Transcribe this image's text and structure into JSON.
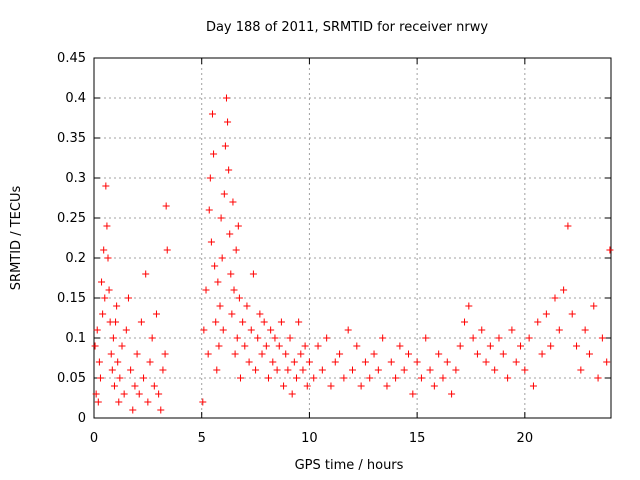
{
  "chart_data": {
    "type": "scatter",
    "title": "Day 188 of 2011, SRMTID for receiver nrwy",
    "xlabel": "GPS time / hours",
    "ylabel": "SRMTID / TECUs",
    "xlim": [
      0,
      24
    ],
    "ylim": [
      0,
      0.45
    ],
    "x_ticks": [
      0,
      5,
      10,
      15,
      20
    ],
    "x_tick_labels": [
      "0",
      "5",
      "10",
      "15",
      "20"
    ],
    "y_ticks": [
      0,
      0.05,
      0.1,
      0.15,
      0.2,
      0.25,
      0.3,
      0.35,
      0.4,
      0.45
    ],
    "y_tick_labels": [
      "0",
      "0.05",
      "0.1",
      "0.15",
      "0.2",
      "0.25",
      "0.3",
      "0.35",
      "0.4",
      "0.45"
    ],
    "grid": true,
    "marker": "+",
    "marker_color": "#ff0000",
    "series": [
      {
        "name": "SRMTID",
        "points": [
          [
            0.05,
            0.09
          ],
          [
            0.1,
            0.03
          ],
          [
            0.15,
            0.11
          ],
          [
            0.2,
            0.02
          ],
          [
            0.25,
            0.07
          ],
          [
            0.3,
            0.05
          ],
          [
            0.35,
            0.17
          ],
          [
            0.4,
            0.13
          ],
          [
            0.45,
            0.21
          ],
          [
            0.5,
            0.15
          ],
          [
            0.55,
            0.29
          ],
          [
            0.6,
            0.24
          ],
          [
            0.65,
            0.2
          ],
          [
            0.7,
            0.16
          ],
          [
            0.75,
            0.12
          ],
          [
            0.8,
            0.08
          ],
          [
            0.85,
            0.06
          ],
          [
            0.9,
            0.1
          ],
          [
            0.95,
            0.04
          ],
          [
            1.0,
            0.12
          ],
          [
            1.05,
            0.14
          ],
          [
            1.1,
            0.07
          ],
          [
            1.15,
            0.02
          ],
          [
            1.2,
            0.05
          ],
          [
            1.3,
            0.09
          ],
          [
            1.4,
            0.03
          ],
          [
            1.5,
            0.11
          ],
          [
            1.6,
            0.15
          ],
          [
            1.7,
            0.06
          ],
          [
            1.8,
            0.01
          ],
          [
            1.9,
            0.04
          ],
          [
            2.0,
            0.08
          ],
          [
            2.1,
            0.03
          ],
          [
            2.2,
            0.12
          ],
          [
            2.3,
            0.05
          ],
          [
            2.4,
            0.18
          ],
          [
            2.5,
            0.02
          ],
          [
            2.6,
            0.07
          ],
          [
            2.7,
            0.1
          ],
          [
            2.8,
            0.04
          ],
          [
            2.9,
            0.13
          ],
          [
            3.0,
            0.03
          ],
          [
            3.1,
            0.01
          ],
          [
            3.2,
            0.06
          ],
          [
            3.3,
            0.08
          ],
          [
            3.35,
            0.265
          ],
          [
            3.4,
            0.21
          ],
          [
            5.05,
            0.02
          ],
          [
            5.1,
            0.11
          ],
          [
            5.2,
            0.16
          ],
          [
            5.3,
            0.08
          ],
          [
            5.35,
            0.26
          ],
          [
            5.4,
            0.3
          ],
          [
            5.45,
            0.22
          ],
          [
            5.5,
            0.38
          ],
          [
            5.55,
            0.33
          ],
          [
            5.6,
            0.19
          ],
          [
            5.65,
            0.12
          ],
          [
            5.7,
            0.06
          ],
          [
            5.75,
            0.17
          ],
          [
            5.8,
            0.09
          ],
          [
            5.85,
            0.14
          ],
          [
            5.9,
            0.25
          ],
          [
            5.95,
            0.2
          ],
          [
            6.0,
            0.11
          ],
          [
            6.05,
            0.28
          ],
          [
            6.1,
            0.34
          ],
          [
            6.15,
            0.4
          ],
          [
            6.2,
            0.37
          ],
          [
            6.25,
            0.31
          ],
          [
            6.3,
            0.23
          ],
          [
            6.35,
            0.18
          ],
          [
            6.4,
            0.13
          ],
          [
            6.45,
            0.27
          ],
          [
            6.5,
            0.16
          ],
          [
            6.55,
            0.08
          ],
          [
            6.6,
            0.21
          ],
          [
            6.65,
            0.1
          ],
          [
            6.7,
            0.24
          ],
          [
            6.75,
            0.15
          ],
          [
            6.8,
            0.05
          ],
          [
            6.9,
            0.12
          ],
          [
            7.0,
            0.09
          ],
          [
            7.1,
            0.14
          ],
          [
            7.2,
            0.07
          ],
          [
            7.3,
            0.11
          ],
          [
            7.4,
            0.18
          ],
          [
            7.5,
            0.06
          ],
          [
            7.6,
            0.1
          ],
          [
            7.7,
            0.13
          ],
          [
            7.8,
            0.08
          ],
          [
            7.9,
            0.12
          ],
          [
            8.0,
            0.09
          ],
          [
            8.1,
            0.05
          ],
          [
            8.2,
            0.11
          ],
          [
            8.3,
            0.07
          ],
          [
            8.4,
            0.1
          ],
          [
            8.5,
            0.06
          ],
          [
            8.6,
            0.09
          ],
          [
            8.7,
            0.12
          ],
          [
            8.8,
            0.04
          ],
          [
            8.9,
            0.08
          ],
          [
            9.0,
            0.06
          ],
          [
            9.1,
            0.1
          ],
          [
            9.2,
            0.03
          ],
          [
            9.3,
            0.07
          ],
          [
            9.4,
            0.05
          ],
          [
            9.5,
            0.12
          ],
          [
            9.6,
            0.08
          ],
          [
            9.7,
            0.06
          ],
          [
            9.8,
            0.09
          ],
          [
            9.9,
            0.04
          ],
          [
            10.0,
            0.07
          ],
          [
            10.2,
            0.05
          ],
          [
            10.4,
            0.09
          ],
          [
            10.6,
            0.06
          ],
          [
            10.8,
            0.1
          ],
          [
            11.0,
            0.04
          ],
          [
            11.2,
            0.07
          ],
          [
            11.4,
            0.08
          ],
          [
            11.6,
            0.05
          ],
          [
            11.8,
            0.11
          ],
          [
            12.0,
            0.06
          ],
          [
            12.2,
            0.09
          ],
          [
            12.4,
            0.04
          ],
          [
            12.6,
            0.07
          ],
          [
            12.8,
            0.05
          ],
          [
            13.0,
            0.08
          ],
          [
            13.2,
            0.06
          ],
          [
            13.4,
            0.1
          ],
          [
            13.6,
            0.04
          ],
          [
            13.8,
            0.07
          ],
          [
            14.0,
            0.05
          ],
          [
            14.2,
            0.09
          ],
          [
            14.4,
            0.06
          ],
          [
            14.6,
            0.08
          ],
          [
            14.8,
            0.03
          ],
          [
            15.0,
            0.07
          ],
          [
            15.2,
            0.05
          ],
          [
            15.4,
            0.1
          ],
          [
            15.6,
            0.06
          ],
          [
            15.8,
            0.04
          ],
          [
            16.0,
            0.08
          ],
          [
            16.2,
            0.05
          ],
          [
            16.4,
            0.07
          ],
          [
            16.6,
            0.03
          ],
          [
            16.8,
            0.06
          ],
          [
            17.0,
            0.09
          ],
          [
            17.2,
            0.12
          ],
          [
            17.4,
            0.14
          ],
          [
            17.6,
            0.1
          ],
          [
            17.8,
            0.08
          ],
          [
            18.0,
            0.11
          ],
          [
            18.2,
            0.07
          ],
          [
            18.4,
            0.09
          ],
          [
            18.6,
            0.06
          ],
          [
            18.8,
            0.1
          ],
          [
            19.0,
            0.08
          ],
          [
            19.2,
            0.05
          ],
          [
            19.4,
            0.11
          ],
          [
            19.6,
            0.07
          ],
          [
            19.8,
            0.09
          ],
          [
            20.0,
            0.06
          ],
          [
            20.2,
            0.1
          ],
          [
            20.4,
            0.04
          ],
          [
            20.6,
            0.12
          ],
          [
            20.8,
            0.08
          ],
          [
            21.0,
            0.13
          ],
          [
            21.2,
            0.09
          ],
          [
            21.4,
            0.15
          ],
          [
            21.6,
            0.11
          ],
          [
            21.8,
            0.16
          ],
          [
            22.0,
            0.24
          ],
          [
            22.2,
            0.13
          ],
          [
            22.4,
            0.09
          ],
          [
            22.6,
            0.06
          ],
          [
            22.8,
            0.11
          ],
          [
            23.0,
            0.08
          ],
          [
            23.2,
            0.14
          ],
          [
            23.4,
            0.05
          ],
          [
            23.6,
            0.1
          ],
          [
            23.8,
            0.07
          ],
          [
            23.95,
            0.21
          ]
        ]
      }
    ]
  }
}
